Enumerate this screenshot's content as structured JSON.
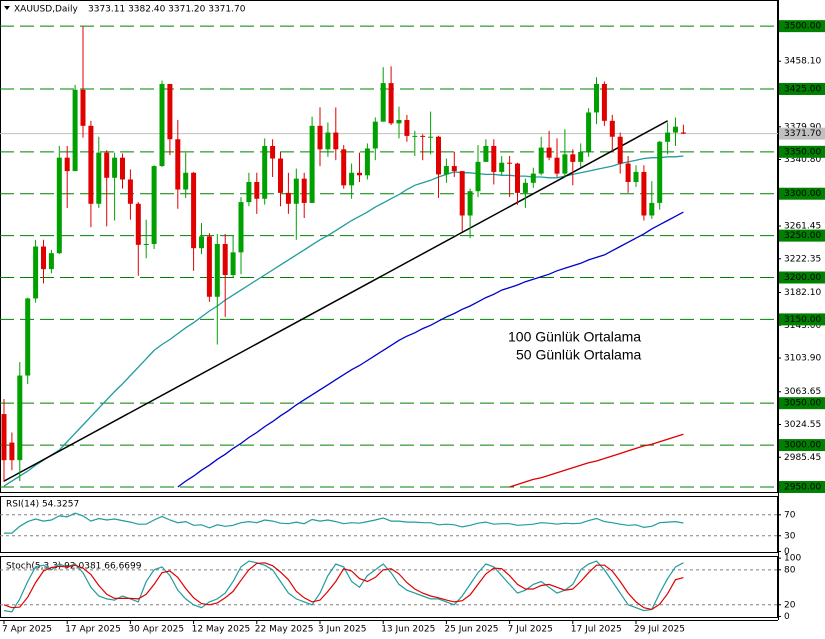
{
  "chart_data": {
    "type": "candlestick",
    "title": "XAUUSD,Daily",
    "ohlc_label": "3373.11 3382.40 3371.20 3371.70",
    "categories": [
      "7 Apr 2025",
      null,
      null,
      null,
      null,
      null,
      null,
      null,
      "17 Apr 2025",
      null,
      null,
      null,
      null,
      null,
      null,
      null,
      "30 Apr 2025",
      null,
      null,
      null,
      null,
      null,
      null,
      null,
      "12 May 2025",
      null,
      null,
      null,
      null,
      null,
      null,
      null,
      "22 May 2025",
      null,
      null,
      null,
      null,
      null,
      null,
      null,
      "3 Jun 2025",
      null,
      null,
      null,
      null,
      null,
      null,
      null,
      "13 Jun 2025",
      null,
      null,
      null,
      null,
      null,
      null,
      null,
      "25 Jun 2025",
      null,
      null,
      null,
      null,
      null,
      null,
      null,
      "7 Jul 2025",
      null,
      null,
      null,
      null,
      null,
      null,
      null,
      "17 Jul 2025",
      null,
      null,
      null,
      null,
      null,
      null,
      null,
      "29 Jul 2025",
      null,
      null,
      null,
      null,
      null,
      null
    ],
    "ohlc": [
      [
        3037,
        3055,
        2956,
        2982
      ],
      [
        3003,
        3015,
        2970,
        2982
      ],
      [
        2982,
        3099,
        2957,
        3083
      ],
      [
        3083,
        3176,
        3073,
        3175
      ],
      [
        3175,
        3245,
        3170,
        3237
      ],
      [
        3237,
        3245,
        3193,
        3210
      ],
      [
        3210,
        3233,
        3205,
        3229
      ],
      [
        3229,
        3357,
        3228,
        3343
      ],
      [
        3343,
        3357,
        3283,
        3327
      ],
      [
        3327,
        3430,
        3327,
        3424
      ],
      [
        3424,
        3500,
        3367,
        3381
      ],
      [
        3381,
        3387,
        3260,
        3288
      ],
      [
        3288,
        3368,
        3283,
        3349
      ],
      [
        3349,
        3352,
        3261,
        3319
      ],
      [
        3319,
        3349,
        3268,
        3343
      ],
      [
        3343,
        3348,
        3306,
        3317
      ],
      [
        3317,
        3329,
        3269,
        3288
      ],
      [
        3288,
        3290,
        3202,
        3239
      ],
      [
        3239,
        3269,
        3223,
        3240
      ],
      [
        3240,
        3334,
        3234,
        3333
      ],
      [
        3333,
        3435,
        3332,
        3431
      ],
      [
        3431,
        3431,
        3346,
        3365
      ],
      [
        3365,
        3388,
        3282,
        3305
      ],
      [
        3305,
        3349,
        3295,
        3325
      ],
      [
        3325,
        3326,
        3208,
        3235
      ],
      [
        3235,
        3265,
        3228,
        3249
      ],
      [
        3249,
        3253,
        3171,
        3177
      ],
      [
        3177,
        3252,
        3120,
        3240
      ],
      [
        3240,
        3252,
        3153,
        3203
      ],
      [
        3203,
        3250,
        3200,
        3230
      ],
      [
        3230,
        3296,
        3204,
        3290
      ],
      [
        3290,
        3325,
        3285,
        3314
      ],
      [
        3314,
        3325,
        3276,
        3294
      ],
      [
        3294,
        3366,
        3287,
        3357
      ],
      [
        3357,
        3365,
        3320,
        3342
      ],
      [
        3342,
        3350,
        3285,
        3301
      ],
      [
        3301,
        3325,
        3276,
        3288
      ],
      [
        3288,
        3330,
        3245,
        3318
      ],
      [
        3318,
        3325,
        3271,
        3289
      ],
      [
        3289,
        3392,
        3289,
        3381
      ],
      [
        3381,
        3403,
        3333,
        3353
      ],
      [
        3353,
        3385,
        3344,
        3373
      ],
      [
        3373,
        3403,
        3340,
        3353
      ],
      [
        3353,
        3358,
        3306,
        3310
      ],
      [
        3310,
        3336,
        3294,
        3325
      ],
      [
        3325,
        3349,
        3314,
        3322
      ],
      [
        3322,
        3360,
        3317,
        3354
      ],
      [
        3354,
        3391,
        3340,
        3386
      ],
      [
        3386,
        3451,
        3386,
        3432
      ],
      [
        3432,
        3452,
        3382,
        3384
      ],
      [
        3384,
        3404,
        3366,
        3388
      ],
      [
        3388,
        3394,
        3362,
        3369
      ],
      [
        3369,
        3375,
        3345,
        3369
      ],
      [
        3369,
        3371,
        3340,
        3368
      ],
      [
        3368,
        3398,
        3347,
        3368
      ],
      [
        3368,
        3369,
        3295,
        3323
      ],
      [
        3323,
        3342,
        3313,
        3333
      ],
      [
        3333,
        3350,
        3320,
        3327
      ],
      [
        3327,
        3327,
        3255,
        3274
      ],
      [
        3274,
        3306,
        3247,
        3303
      ],
      [
        3303,
        3358,
        3296,
        3338
      ],
      [
        3338,
        3365,
        3338,
        3357
      ],
      [
        3357,
        3365,
        3311,
        3326
      ],
      [
        3326,
        3345,
        3322,
        3337
      ],
      [
        3337,
        3345,
        3296,
        3336
      ],
      [
        3336,
        3337,
        3287,
        3301
      ],
      [
        3301,
        3318,
        3283,
        3313
      ],
      [
        3313,
        3331,
        3307,
        3324
      ],
      [
        3324,
        3368,
        3322,
        3355
      ],
      [
        3355,
        3375,
        3340,
        3343
      ],
      [
        3343,
        3366,
        3320,
        3324
      ],
      [
        3324,
        3377,
        3319,
        3347
      ],
      [
        3347,
        3353,
        3310,
        3338
      ],
      [
        3338,
        3360,
        3332,
        3350
      ],
      [
        3350,
        3402,
        3344,
        3397
      ],
      [
        3397,
        3439,
        3383,
        3431
      ],
      [
        3431,
        3434,
        3381,
        3387
      ],
      [
        3387,
        3394,
        3351,
        3368
      ],
      [
        3368,
        3373,
        3324,
        3336
      ],
      [
        3336,
        3345,
        3301,
        3314
      ],
      [
        3314,
        3334,
        3308,
        3326
      ],
      [
        3326,
        3334,
        3268,
        3274
      ],
      [
        3274,
        3315,
        3270,
        3289
      ],
      [
        3289,
        3363,
        3281,
        3362
      ],
      [
        3362,
        3385,
        3347,
        3373
      ],
      [
        3373,
        3391,
        3357,
        3380
      ],
      [
        3373.11,
        3382.4,
        3371.2,
        3371.7
      ]
    ],
    "up_color": "#00a000",
    "down_color": "#e00000",
    "ylim": [
      2944,
      3530
    ],
    "yticks": [
      {
        "value": 3458.1,
        "label": "3458.10"
      },
      {
        "value": 3379.9,
        "label": "3379.90"
      },
      {
        "value": 3340.8,
        "label": "3340.80"
      },
      {
        "value": 3261.45,
        "label": "3261.45"
      },
      {
        "value": 3222.35,
        "label": "3222.35"
      },
      {
        "value": 3182.1,
        "label": "3182.10"
      },
      {
        "value": 3143,
        "label": "3143.00"
      },
      {
        "value": 3103.9,
        "label": "3103.90"
      },
      {
        "value": 3063.65,
        "label": "3063.65"
      },
      {
        "value": 3024.55,
        "label": "3024.55"
      },
      {
        "value": 2985.45,
        "label": "2985.45"
      }
    ],
    "levels": {
      "color": "#008000",
      "values": [
        {
          "value": 3500,
          "label": "3500.00"
        },
        {
          "value": 3425,
          "label": "3425.00"
        },
        {
          "value": 3350,
          "label": "3350.00"
        },
        {
          "value": 3300,
          "label": "3300.00"
        },
        {
          "value": 3250,
          "label": "3250.00"
        },
        {
          "value": 3200,
          "label": "3200.00"
        },
        {
          "value": 3150,
          "label": "3150.00"
        },
        {
          "value": 3050,
          "label": "3050.00"
        },
        {
          "value": 3000,
          "label": "3000.00"
        },
        {
          "value": 2950,
          "label": "2950.00"
        }
      ]
    },
    "current_price": {
      "value": 3371.7,
      "label": "3371.70"
    },
    "series": [
      {
        "name": "100 Günlük Ortalama",
        "color": "#0000cc",
        "values": [
          null,
          null,
          null,
          null,
          null,
          null,
          null,
          null,
          null,
          null,
          null,
          null,
          null,
          null,
          null,
          null,
          null,
          null,
          null,
          null,
          null,
          null,
          2950,
          2957,
          2963,
          2970,
          2976,
          2983,
          2989,
          2996,
          3002,
          3009,
          3015,
          3022,
          3028,
          3035,
          3041,
          3048,
          3054,
          3060,
          3066,
          3072,
          3078,
          3084,
          3090,
          3095,
          3101,
          3107,
          3113,
          3119,
          3125,
          3130,
          3134,
          3139,
          3143,
          3148,
          3153,
          3157,
          3162,
          3166,
          3171,
          3176,
          3180,
          3185,
          3188,
          3191,
          3195,
          3198,
          3201,
          3204,
          3208,
          3211,
          3214,
          3217,
          3221,
          3224,
          3227,
          3232,
          3237,
          3242,
          3247,
          3252,
          3258,
          3263,
          3268,
          3273,
          3278
        ]
      },
      {
        "name": "50 Günlük Ortalama",
        "color": "#209c9c",
        "values": [
          2951,
          2957,
          2963,
          2969,
          2976,
          2982,
          2988,
          2994,
          3004,
          3014,
          3024,
          3034,
          3044,
          3054,
          3064,
          3073,
          3083,
          3093,
          3103,
          3113,
          3120,
          3126,
          3133,
          3140,
          3146,
          3153,
          3160,
          3166,
          3173,
          3179,
          3185,
          3191,
          3197,
          3203,
          3209,
          3215,
          3221,
          3227,
          3233,
          3239,
          3245,
          3250,
          3256,
          3262,
          3268,
          3273,
          3278,
          3284,
          3289,
          3294,
          3299,
          3305,
          3310,
          3313,
          3316,
          3320,
          3323,
          3326,
          3325,
          3325,
          3324,
          3323,
          3323,
          3322,
          3322,
          3321,
          3321,
          3320,
          3320,
          3319,
          3319,
          3321,
          3323,
          3325,
          3327,
          3329,
          3331,
          3333,
          3336,
          3338,
          3340,
          3342,
          3343,
          3343,
          3344,
          3344,
          3345
        ]
      },
      {
        "color": "#e00000",
        "values": [
          null,
          null,
          null,
          null,
          null,
          null,
          null,
          null,
          null,
          null,
          null,
          null,
          null,
          null,
          null,
          null,
          null,
          null,
          null,
          null,
          null,
          null,
          null,
          null,
          null,
          null,
          null,
          null,
          null,
          null,
          null,
          null,
          null,
          null,
          null,
          null,
          null,
          null,
          null,
          null,
          null,
          null,
          null,
          null,
          null,
          null,
          null,
          null,
          null,
          null,
          null,
          null,
          null,
          null,
          null,
          null,
          null,
          null,
          null,
          null,
          null,
          null,
          null,
          null,
          2950,
          2953,
          2956,
          2959,
          2961,
          2964,
          2967,
          2970,
          2973,
          2976,
          2979,
          2981,
          2984,
          2987,
          2990,
          2993,
          2996,
          2999,
          3001,
          3004,
          3007,
          3010,
          3013
        ]
      }
    ],
    "trendline": {
      "color": "#000000",
      "start": [
        0,
        2957
      ],
      "end": [
        84,
        3387
      ]
    },
    "indicators": [
      {
        "title": "RSI(14) 54.3257",
        "ylim": [
          -1,
          104
        ],
        "yticks": [
          70,
          30,
          0
        ],
        "levels": [
          70,
          30
        ],
        "series": [
          {
            "color": "#209c9c",
            "values": [
              35,
              35,
              48,
              57,
              62,
              58,
              60,
              68,
              66,
              73,
              68,
              58,
              63,
              60,
              62,
              59,
              56,
              52,
              52,
              60,
              67,
              60,
              55,
              57,
              50,
              51,
              45,
              51,
              48,
              50,
              55,
              57,
              55,
              60,
              58,
              54,
              53,
              56,
              53,
              61,
              58,
              60,
              57,
              53,
              55,
              54,
              57,
              60,
              64,
              58,
              58,
              56,
              56,
              55,
              55,
              51,
              52,
              51,
              47,
              50,
              54,
              56,
              52,
              53,
              53,
              50,
              51,
              52,
              55,
              54,
              52,
              54,
              53,
              54,
              59,
              63,
              57,
              55,
              52,
              50,
              51,
              46,
              48,
              55,
              56,
              57,
              54.3257
            ]
          }
        ]
      },
      {
        "title": "Stoch(5,3,3) 92.0381 66.6699",
        "ylim": [
          -1,
          102
        ],
        "yticks": [
          100,
          80,
          20,
          0
        ],
        "levels": [
          80,
          20
        ],
        "series": [
          {
            "color": "#209c9c",
            "values": [
              10,
              8,
              30,
              60,
              85,
              88,
              80,
              90,
              85,
              90,
              75,
              50,
              35,
              30,
              28,
              35,
              30,
              25,
              60,
              80,
              85,
              70,
              45,
              30,
              20,
              15,
              25,
              30,
              40,
              60,
              85,
              95,
              92,
              88,
              80,
              60,
              40,
              30,
              25,
              20,
              40,
              70,
              90,
              85,
              60,
              50,
              70,
              80,
              90,
              75,
              55,
              45,
              40,
              35,
              30,
              30,
              25,
              20,
              35,
              55,
              75,
              90,
              85,
              70,
              55,
              40,
              45,
              55,
              60,
              50,
              40,
              45,
              55,
              80,
              90,
              95,
              80,
              60,
              40,
              20,
              15,
              10,
              12,
              40,
              65,
              85,
              92.0381
            ]
          },
          {
            "color": "#e00000",
            "values": [
              20,
              15,
              16,
              33,
              58,
              78,
              84,
              86,
              85,
              88,
              83,
              72,
              53,
              38,
              31,
              31,
              31,
              30,
              38,
              55,
              75,
              78,
              67,
              48,
              32,
              22,
              20,
              23,
              32,
              43,
              62,
              80,
              91,
              92,
              87,
              76,
              63,
              43,
              32,
              25,
              28,
              43,
              60,
              82,
              78,
              65,
              60,
              67,
              80,
              82,
              73,
              58,
              47,
              40,
              35,
              32,
              28,
              25,
              27,
              37,
              55,
              73,
              83,
              82,
              70,
              55,
              47,
              47,
              53,
              55,
              50,
              45,
              47,
              60,
              75,
              88,
              88,
              78,
              60,
              40,
              25,
              15,
              12,
              21,
              39,
              63,
              66.6699
            ]
          }
        ]
      }
    ]
  }
}
